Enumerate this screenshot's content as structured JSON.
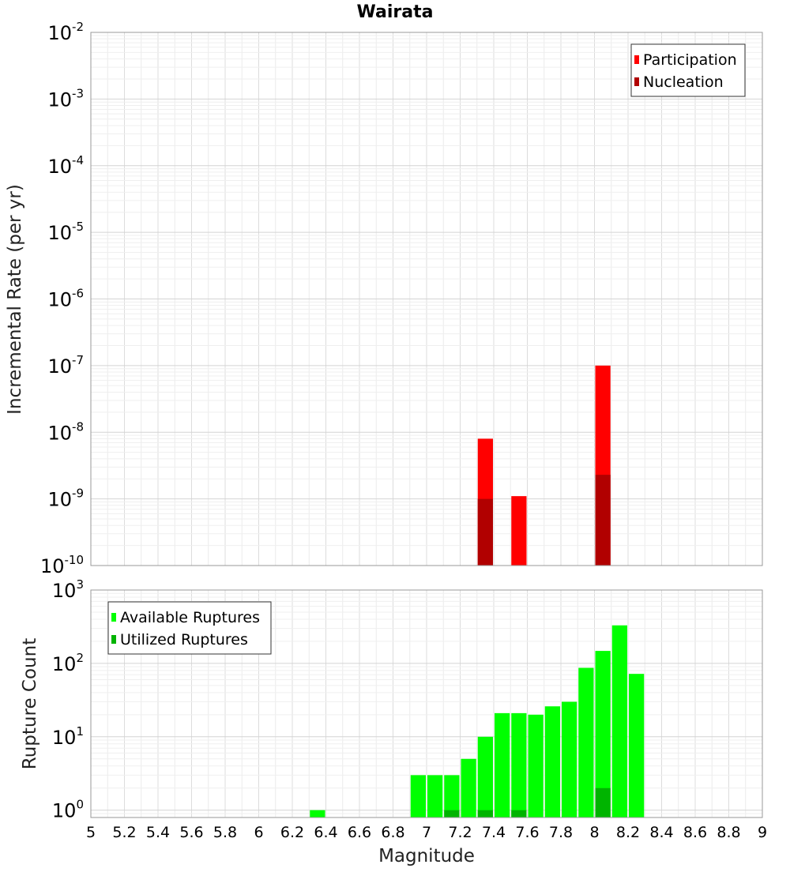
{
  "chart_data": [
    {
      "type": "bar",
      "title": "Wairata",
      "xlabel": "",
      "ylabel": "Incremental Rate (per yr)",
      "y_scale": "log",
      "ylim_exponents": [
        -10,
        -2
      ],
      "y_tick_base": "10",
      "y_tick_exponents": [
        "-10",
        "-9",
        "-8",
        "-7",
        "-6",
        "-5",
        "-4",
        "-3",
        "-2"
      ],
      "xlim": [
        5,
        9
      ],
      "bar_width": 0.1,
      "grid": true,
      "legend_position": "top-right",
      "series": [
        {
          "name": "Participation",
          "color": "#ff0000",
          "points": [
            {
              "x": 7.35,
              "y": 8e-09
            },
            {
              "x": 7.55,
              "y": 1.1e-09
            },
            {
              "x": 8.05,
              "y": 1e-07
            }
          ]
        },
        {
          "name": "Nucleation",
          "color": "#b10000",
          "points": [
            {
              "x": 7.35,
              "y": 1e-09
            },
            {
              "x": 8.05,
              "y": 2.3e-09
            }
          ]
        }
      ]
    },
    {
      "type": "bar",
      "title": "",
      "xlabel": "Magnitude",
      "ylabel": "Rupture Count",
      "y_scale": "log",
      "ylim_exponents": [
        -0.1,
        3
      ],
      "y_tick_base": "10",
      "y_tick_exponents": [
        "0",
        "1",
        "2",
        "3"
      ],
      "xlim": [
        5,
        9
      ],
      "x_ticks": [
        "5",
        "5.2",
        "5.4",
        "5.6",
        "5.8",
        "6",
        "6.2",
        "6.4",
        "6.6",
        "6.8",
        "7",
        "7.2",
        "7.4",
        "7.6",
        "7.8",
        "8",
        "8.2",
        "8.4",
        "8.6",
        "8.8",
        "9"
      ],
      "bar_width": 0.1,
      "grid": true,
      "legend_position": "top-left",
      "series": [
        {
          "name": "Available Ruptures",
          "color": "#00ff00",
          "points": [
            {
              "x": 6.35,
              "y": 1
            },
            {
              "x": 6.95,
              "y": 3
            },
            {
              "x": 7.05,
              "y": 3
            },
            {
              "x": 7.15,
              "y": 3
            },
            {
              "x": 7.25,
              "y": 5
            },
            {
              "x": 7.35,
              "y": 10
            },
            {
              "x": 7.45,
              "y": 21
            },
            {
              "x": 7.55,
              "y": 21
            },
            {
              "x": 7.65,
              "y": 20
            },
            {
              "x": 7.75,
              "y": 26
            },
            {
              "x": 7.85,
              "y": 30
            },
            {
              "x": 7.95,
              "y": 87
            },
            {
              "x": 8.05,
              "y": 148
            },
            {
              "x": 8.15,
              "y": 330
            },
            {
              "x": 8.25,
              "y": 72
            }
          ]
        },
        {
          "name": "Utilized Ruptures",
          "color": "#00b400",
          "points": [
            {
              "x": 7.15,
              "y": 1
            },
            {
              "x": 7.35,
              "y": 1
            },
            {
              "x": 7.55,
              "y": 1
            },
            {
              "x": 8.05,
              "y": 2
            }
          ]
        }
      ]
    }
  ]
}
